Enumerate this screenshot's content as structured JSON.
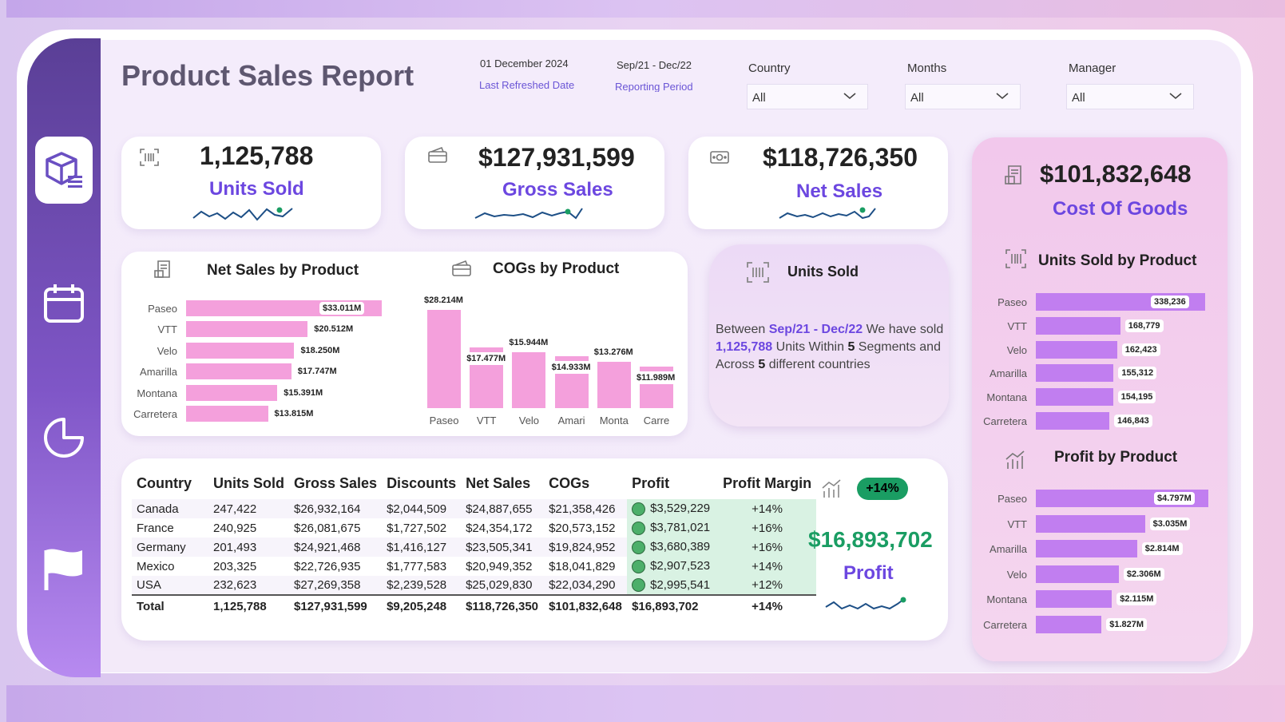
{
  "header": {
    "title": "Product Sales Report",
    "refresh_date": "01 December 2024",
    "refresh_label": "Last Refreshed Date",
    "period": "Sep/21 - Dec/22",
    "period_label": "Reporting Period"
  },
  "filters": [
    {
      "label": "Country",
      "value": "All"
    },
    {
      "label": "Months",
      "value": "All"
    },
    {
      "label": "Manager",
      "value": "All"
    }
  ],
  "nav": {
    "items": [
      "package-list-icon",
      "calendar-icon",
      "pie-chart-icon",
      "flag-icon"
    ],
    "active": "package-list-icon"
  },
  "kpis": {
    "units_sold": {
      "value": "1,125,788",
      "label": "Units Sold",
      "icon": "barcode-icon"
    },
    "gross_sales": {
      "value": "$127,931,599",
      "label": "Gross Sales",
      "icon": "card-icon"
    },
    "net_sales": {
      "value": "$118,726,350",
      "label": "Net Sales",
      "icon": "cash-icon"
    },
    "cogs": {
      "value": "$101,832,648",
      "label": "Cost Of Goods",
      "icon": "receipt-icon"
    }
  },
  "colors": {
    "accent": "#6c47e0",
    "pink_bar": "#f4a0dc",
    "purple_bar": "#c17ef0",
    "profit_green": "#1a9d63",
    "sparkline": "#1d4f86"
  },
  "chart_data": [
    {
      "type": "bar",
      "orientation": "horizontal",
      "title": "Net Sales by Product",
      "categories": [
        "Paseo",
        "VTT",
        "Velo",
        "Amarilla",
        "Montana",
        "Carretera"
      ],
      "values": [
        33.011,
        20.512,
        18.25,
        17.747,
        15.391,
        13.815
      ],
      "value_labels": [
        "$33.011M",
        "$20.512M",
        "$18.250M",
        "$17.747M",
        "$15.391M",
        "$13.815M"
      ]
    },
    {
      "type": "bar",
      "orientation": "vertical",
      "title": "COGs by Product",
      "categories": [
        "Paseo",
        "VTT",
        "Velo",
        "Amari",
        "Monta",
        "Carre"
      ],
      "values": [
        28.214,
        17.477,
        15.944,
        14.933,
        13.276,
        11.989
      ],
      "value_labels": [
        "$28.214M",
        "$17.477M",
        "$15.944M",
        "$14.933M",
        "$13.276M",
        "$11.989M"
      ]
    },
    {
      "type": "bar",
      "orientation": "horizontal",
      "title": "Units Sold by Product",
      "categories": [
        "Paseo",
        "VTT",
        "Velo",
        "Amarilla",
        "Montana",
        "Carretera"
      ],
      "values": [
        338236,
        168779,
        162423,
        155312,
        154195,
        146843
      ],
      "value_labels": [
        "338,236",
        "168,779",
        "162,423",
        "155,312",
        "154,195",
        "146,843"
      ]
    },
    {
      "type": "bar",
      "orientation": "horizontal",
      "title": "Profit by Product",
      "categories": [
        "Paseo",
        "VTT",
        "Amarilla",
        "Velo",
        "Montana",
        "Carretera"
      ],
      "values": [
        4.797,
        3.035,
        2.814,
        2.306,
        2.115,
        1.827
      ],
      "value_labels": [
        "$4.797M",
        "$3.035M",
        "$2.814M",
        "$2.306M",
        "$2.115M",
        "$1.827M"
      ]
    }
  ],
  "units_card": {
    "title": "Units Sold",
    "text_1": "Between ",
    "period": "Sep/21 - Dec/22",
    "text_2": " We have sold ",
    "units": "1,125,788",
    "text_3": " Units Within ",
    "segments": "5",
    "text_4": " Segments and Across ",
    "countries": "5",
    "text_5": " different countries"
  },
  "table": {
    "columns": [
      "Country",
      "Units Sold",
      "Gross Sales",
      "Discounts",
      "Net Sales",
      "COGs",
      "Profit",
      "Profit Margin"
    ],
    "rows": [
      [
        "Canada",
        "247,422",
        "$26,932,164",
        "$2,044,509",
        "$24,887,655",
        "$21,358,426",
        "$3,529,229",
        "+14%"
      ],
      [
        "France",
        "240,925",
        "$26,081,675",
        "$1,727,502",
        "$24,354,172",
        "$20,573,152",
        "$3,781,021",
        "+16%"
      ],
      [
        "Germany",
        "201,493",
        "$24,921,468",
        "$1,416,127",
        "$23,505,341",
        "$19,824,952",
        "$3,680,389",
        "+16%"
      ],
      [
        "Mexico",
        "203,325",
        "$22,726,935",
        "$1,777,583",
        "$20,949,352",
        "$18,041,829",
        "$2,907,523",
        "+14%"
      ],
      [
        "USA",
        "232,623",
        "$27,269,358",
        "$2,239,528",
        "$25,029,830",
        "$22,034,290",
        "$2,995,541",
        "+12%"
      ]
    ],
    "total": [
      "Total",
      "1,125,788",
      "$127,931,599",
      "$9,205,248",
      "$118,726,350",
      "$101,832,648",
      "$16,893,702",
      "+14%"
    ]
  },
  "profit_kpi": {
    "badge": "+14%",
    "value": "$16,893,702",
    "label": "Profit",
    "icon": "growth-chart-icon"
  }
}
